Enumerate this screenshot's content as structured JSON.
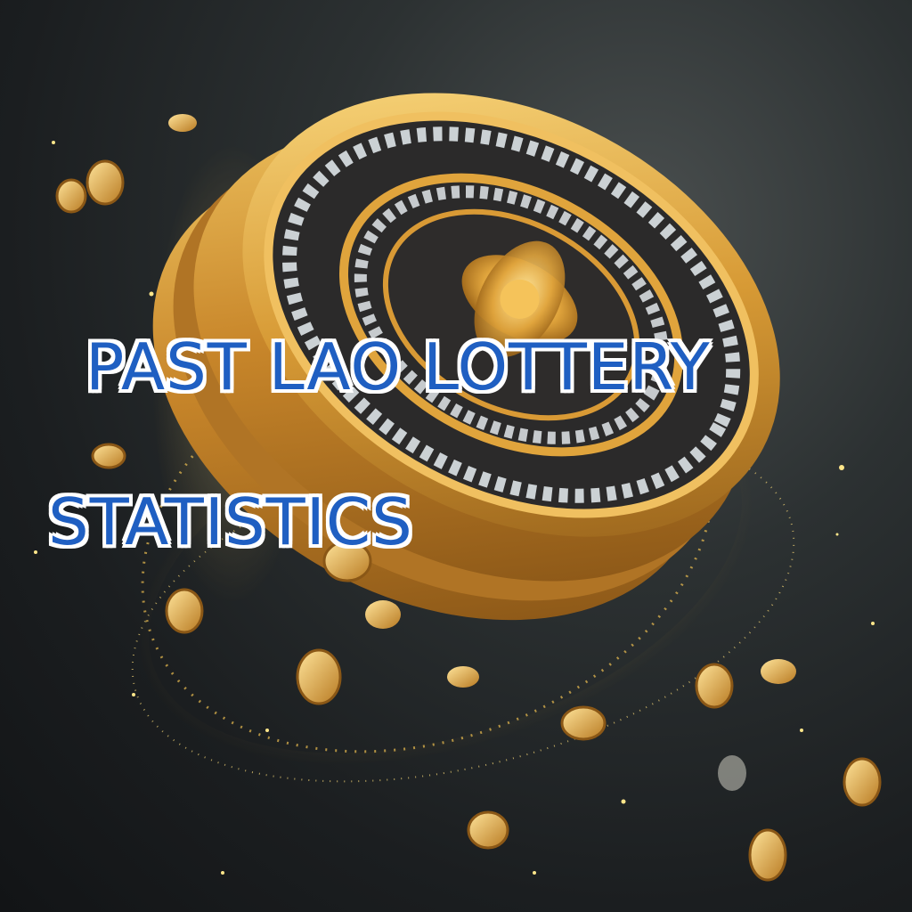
{
  "image": {
    "subject": "gold-jeweled-coin-with-sparkle-trail",
    "palette": {
      "gold": "#d9a23a",
      "gold_light": "#ffd979",
      "dark_inlay": "#2b2a2a",
      "background": "#23282a",
      "text_fill": "#1f5fc2",
      "text_outline": "#ffffff"
    }
  },
  "headline": {
    "line1": "PAST LAO LOTTERY",
    "line2": "STATISTICS"
  }
}
